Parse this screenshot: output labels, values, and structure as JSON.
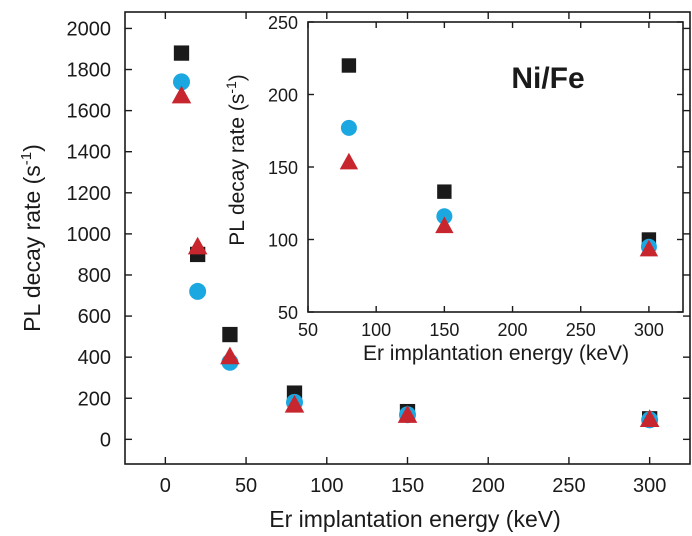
{
  "chart_data": [
    {
      "type": "scatter",
      "title": "",
      "xlabel": "Er implantation energy (keV)",
      "ylabel": "PL decay rate (s",
      "ylabel_superscript": "-1",
      "ylabel_close": ")",
      "xlim": [
        -25,
        325
      ],
      "ylim": [
        -120,
        2080
      ],
      "xticks": [
        0,
        50,
        100,
        150,
        200,
        250,
        300
      ],
      "yticks": [
        0,
        200,
        400,
        600,
        800,
        1000,
        1200,
        1400,
        1600,
        1800,
        2000
      ],
      "grid": false,
      "series": [
        {
          "marker": "square",
          "color": "#1a1a1a",
          "x": [
            10,
            20,
            40,
            80,
            150,
            300
          ],
          "y": [
            1880,
            900,
            510,
            225,
            135,
            100
          ]
        },
        {
          "marker": "circle",
          "color": "#1ba7e0",
          "x": [
            10,
            20,
            40,
            80,
            150,
            300
          ],
          "y": [
            1740,
            720,
            375,
            180,
            120,
            95
          ]
        },
        {
          "marker": "triangle",
          "color": "#c8262e",
          "x": [
            10,
            20,
            40,
            80,
            150,
            300
          ],
          "y": [
            1670,
            935,
            400,
            165,
            115,
            95
          ]
        }
      ]
    },
    {
      "type": "scatter",
      "title": "",
      "annotation": "Ni/Fe",
      "xlabel": "Er implantation energy (keV)",
      "ylabel": "PL decay rate (s",
      "ylabel_superscript": "-1",
      "ylabel_close": ")",
      "xlim": [
        50,
        325
      ],
      "ylim": [
        50,
        250
      ],
      "xticks": [
        50,
        100,
        150,
        200,
        250,
        300
      ],
      "yticks": [
        50,
        100,
        150,
        200,
        250
      ],
      "grid": false,
      "series": [
        {
          "marker": "square",
          "color": "#1a1a1a",
          "x": [
            80,
            150,
            300
          ],
          "y": [
            220,
            133,
            100
          ]
        },
        {
          "marker": "circle",
          "color": "#1ba7e0",
          "x": [
            80,
            150,
            300
          ],
          "y": [
            177,
            116,
            95
          ]
        },
        {
          "marker": "triangle",
          "color": "#c8262e",
          "x": [
            80,
            150,
            300
          ],
          "y": [
            153,
            109,
            93
          ]
        }
      ]
    }
  ]
}
